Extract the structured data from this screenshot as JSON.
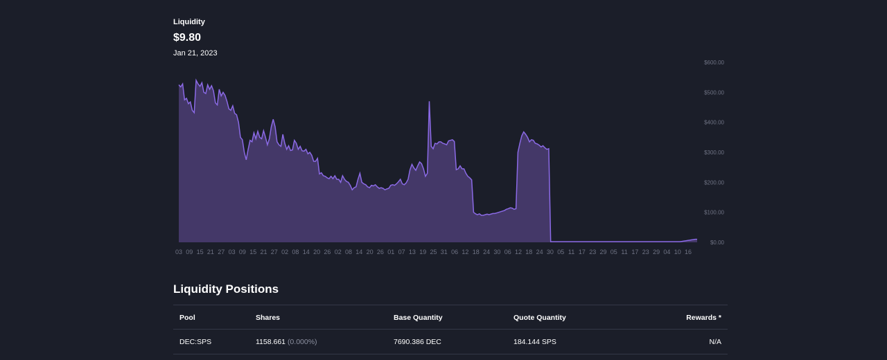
{
  "header": {
    "title": "Liquidity",
    "value": "$9.80",
    "date": "Jan 21, 2023"
  },
  "colors": {
    "background": "#1b1e29",
    "line": "#8b6ae6",
    "fill": "#443868",
    "tick": "#6f7384",
    "border": "#343847"
  },
  "chart_data": {
    "type": "area",
    "title": "Liquidity",
    "ylim": [
      0,
      600
    ],
    "grid": false,
    "y_ticks": [
      "$0.00",
      "$100.00",
      "$200.00",
      "$300.00",
      "$400.00",
      "$500.00",
      "$600.00"
    ],
    "x_ticks": [
      "03",
      "09",
      "15",
      "21",
      "27",
      "03",
      "09",
      "15",
      "21",
      "27",
      "02",
      "08",
      "14",
      "20",
      "26",
      "02",
      "08",
      "14",
      "20",
      "26",
      "01",
      "07",
      "13",
      "19",
      "25",
      "31",
      "06",
      "12",
      "18",
      "24",
      "30",
      "06",
      "12",
      "18",
      "24",
      "30",
      "05",
      "11",
      "17",
      "23",
      "29",
      "05",
      "11",
      "17",
      "23",
      "29",
      "04",
      "10",
      "16"
    ],
    "values": [
      525,
      518,
      528,
      475,
      480,
      462,
      468,
      440,
      432,
      540,
      528,
      520,
      532,
      500,
      496,
      525,
      510,
      522,
      505,
      465,
      458,
      510,
      488,
      500,
      490,
      470,
      445,
      440,
      455,
      430,
      425,
      400,
      350,
      342,
      300,
      275,
      310,
      340,
      335,
      365,
      345,
      370,
      350,
      345,
      372,
      350,
      325,
      345,
      385,
      410,
      385,
      335,
      325,
      320,
      360,
      330,
      310,
      322,
      306,
      308,
      340,
      330,
      310,
      320,
      305,
      304,
      310,
      295,
      300,
      290,
      270,
      270,
      280,
      228,
      232,
      222,
      220,
      215,
      212,
      220,
      212,
      222,
      210,
      210,
      200,
      222,
      210,
      203,
      200,
      190,
      175,
      182,
      185,
      210,
      230,
      200,
      195,
      192,
      185,
      182,
      190,
      188,
      192,
      185,
      180,
      182,
      180,
      175,
      178,
      180,
      190,
      192,
      190,
      195,
      202,
      210,
      195,
      192,
      198,
      210,
      242,
      260,
      248,
      240,
      255,
      268,
      262,
      245,
      220,
      230,
      470,
      320,
      312,
      330,
      328,
      335,
      335,
      330,
      328,
      325,
      338,
      340,
      342,
      336,
      242,
      245,
      255,
      245,
      245,
      230,
      220,
      215,
      208,
      100,
      95,
      92,
      95,
      90,
      90,
      92,
      94,
      92,
      94,
      96,
      96,
      98,
      100,
      102,
      104,
      106,
      110,
      112,
      115,
      114,
      110,
      112,
      300,
      330,
      355,
      368,
      360,
      350,
      335,
      342,
      340,
      330,
      328,
      324,
      318,
      322,
      315,
      310,
      312,
      2,
      2,
      2,
      2,
      2,
      2,
      2,
      2,
      2,
      2,
      2,
      2,
      2,
      2,
      2,
      2,
      2,
      2,
      2,
      2,
      2,
      2,
      2,
      2,
      2,
      2,
      2,
      2,
      2,
      2,
      2,
      2,
      2,
      2,
      2,
      2,
      2,
      2,
      2,
      2,
      2,
      2,
      2,
      2,
      2,
      2,
      2,
      2,
      2,
      2,
      2,
      2,
      2,
      2,
      2,
      2,
      2,
      2,
      2,
      2,
      2,
      2,
      2,
      2,
      2,
      2,
      2,
      2,
      3,
      4,
      5,
      6,
      7,
      8,
      9,
      10,
      10
    ]
  },
  "positions": {
    "title": "Liquidity Positions",
    "columns": [
      "Pool",
      "Shares",
      "Base Quantity",
      "Quote Quantity",
      "Rewards *"
    ],
    "rows": [
      {
        "pool": "DEC:SPS",
        "shares": "1158.661",
        "shares_pct": "(0.000%)",
        "base": "7690.386 DEC",
        "quote": "184.144 SPS",
        "rewards": "N/A"
      }
    ]
  }
}
